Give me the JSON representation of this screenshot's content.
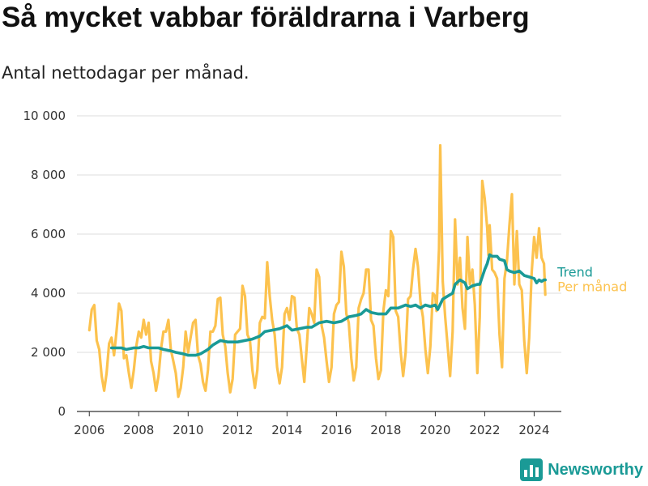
{
  "header": {
    "title": "Så mycket vabbar föräldrarna i Varberg",
    "subtitle": "Antal nettodagar per månad."
  },
  "brand": {
    "name": "Newsworthy",
    "icon": "bar-chart-logo-icon"
  },
  "colors": {
    "per_month": "#fcc24e",
    "trend": "#1a9a96",
    "grid": "#dddddd",
    "axis": "#333333"
  },
  "chart_data": {
    "type": "line",
    "xlim": [
      2005.5,
      2025.1
    ],
    "ylim": [
      0,
      10000
    ],
    "grid": "horizontal",
    "x_ticks": [
      2006,
      2008,
      2010,
      2012,
      2014,
      2016,
      2018,
      2020,
      2022,
      2024
    ],
    "x_tick_labels": [
      "2006",
      "2008",
      "2010",
      "2012",
      "2014",
      "2016",
      "2018",
      "2020",
      "2022",
      "2024"
    ],
    "y_ticks": [
      0,
      2000,
      4000,
      6000,
      8000,
      10000
    ],
    "y_tick_labels": [
      "0",
      "2 000",
      "4 000",
      "6 000",
      "8 000",
      "10 000"
    ],
    "series": [
      {
        "name": "Per månad",
        "values": [
          [
            2006.0,
            2750
          ],
          [
            2006.1,
            3450
          ],
          [
            2006.2,
            3600
          ],
          [
            2006.3,
            2400
          ],
          [
            2006.4,
            2100
          ],
          [
            2006.5,
            1200
          ],
          [
            2006.6,
            700
          ],
          [
            2006.7,
            1300
          ],
          [
            2006.8,
            2300
          ],
          [
            2006.9,
            2500
          ],
          [
            2007.0,
            1900
          ],
          [
            2007.1,
            2700
          ],
          [
            2007.2,
            3650
          ],
          [
            2007.3,
            3400
          ],
          [
            2007.4,
            1800
          ],
          [
            2007.5,
            1900
          ],
          [
            2007.6,
            1300
          ],
          [
            2007.7,
            800
          ],
          [
            2007.8,
            1400
          ],
          [
            2007.9,
            2200
          ],
          [
            2008.0,
            2700
          ],
          [
            2008.1,
            2500
          ],
          [
            2008.2,
            3100
          ],
          [
            2008.3,
            2600
          ],
          [
            2008.4,
            3000
          ],
          [
            2008.5,
            1700
          ],
          [
            2008.6,
            1300
          ],
          [
            2008.7,
            700
          ],
          [
            2008.8,
            1200
          ],
          [
            2008.9,
            2100
          ],
          [
            2009.0,
            2700
          ],
          [
            2009.1,
            2700
          ],
          [
            2009.2,
            3100
          ],
          [
            2009.3,
            2100
          ],
          [
            2009.4,
            1700
          ],
          [
            2009.5,
            1300
          ],
          [
            2009.6,
            500
          ],
          [
            2009.7,
            800
          ],
          [
            2009.8,
            1500
          ],
          [
            2009.9,
            2700
          ],
          [
            2010.0,
            2000
          ],
          [
            2010.1,
            2500
          ],
          [
            2010.2,
            3000
          ],
          [
            2010.3,
            3100
          ],
          [
            2010.4,
            1900
          ],
          [
            2010.5,
            1600
          ],
          [
            2010.6,
            1000
          ],
          [
            2010.7,
            700
          ],
          [
            2010.8,
            1400
          ],
          [
            2010.9,
            2700
          ],
          [
            2011.0,
            2700
          ],
          [
            2011.1,
            2900
          ],
          [
            2011.2,
            3800
          ],
          [
            2011.3,
            3850
          ],
          [
            2011.4,
            2600
          ],
          [
            2011.5,
            2200
          ],
          [
            2011.6,
            1300
          ],
          [
            2011.7,
            650
          ],
          [
            2011.8,
            1100
          ],
          [
            2011.9,
            2600
          ],
          [
            2012.0,
            2700
          ],
          [
            2012.1,
            2800
          ],
          [
            2012.2,
            4250
          ],
          [
            2012.3,
            3900
          ],
          [
            2012.4,
            2600
          ],
          [
            2012.5,
            2400
          ],
          [
            2012.6,
            1400
          ],
          [
            2012.7,
            800
          ],
          [
            2012.8,
            1400
          ],
          [
            2012.9,
            3000
          ],
          [
            2013.0,
            3200
          ],
          [
            2013.1,
            3150
          ],
          [
            2013.2,
            5050
          ],
          [
            2013.3,
            3900
          ],
          [
            2013.4,
            3100
          ],
          [
            2013.5,
            2600
          ],
          [
            2013.6,
            1500
          ],
          [
            2013.7,
            950
          ],
          [
            2013.8,
            1500
          ],
          [
            2013.9,
            3300
          ],
          [
            2014.0,
            3500
          ],
          [
            2014.1,
            3100
          ],
          [
            2014.2,
            3900
          ],
          [
            2014.3,
            3850
          ],
          [
            2014.4,
            2800
          ],
          [
            2014.5,
            2600
          ],
          [
            2014.6,
            1800
          ],
          [
            2014.7,
            1000
          ],
          [
            2014.8,
            2200
          ],
          [
            2014.9,
            3500
          ],
          [
            2015.0,
            3300
          ],
          [
            2015.1,
            3000
          ],
          [
            2015.2,
            4800
          ],
          [
            2015.3,
            4550
          ],
          [
            2015.4,
            2900
          ],
          [
            2015.5,
            2500
          ],
          [
            2015.6,
            1700
          ],
          [
            2015.7,
            1000
          ],
          [
            2015.8,
            1500
          ],
          [
            2015.9,
            3300
          ],
          [
            2016.0,
            3600
          ],
          [
            2016.1,
            3700
          ],
          [
            2016.2,
            5400
          ],
          [
            2016.3,
            4900
          ],
          [
            2016.4,
            3300
          ],
          [
            2016.5,
            3000
          ],
          [
            2016.6,
            1800
          ],
          [
            2016.7,
            1050
          ],
          [
            2016.8,
            1500
          ],
          [
            2016.9,
            3500
          ],
          [
            2017.0,
            3800
          ],
          [
            2017.1,
            4000
          ],
          [
            2017.2,
            4800
          ],
          [
            2017.3,
            4800
          ],
          [
            2017.4,
            3100
          ],
          [
            2017.5,
            2900
          ],
          [
            2017.6,
            1800
          ],
          [
            2017.7,
            1100
          ],
          [
            2017.8,
            1400
          ],
          [
            2017.9,
            3400
          ],
          [
            2018.0,
            4100
          ],
          [
            2018.1,
            3900
          ],
          [
            2018.2,
            6100
          ],
          [
            2018.3,
            5900
          ],
          [
            2018.4,
            3400
          ],
          [
            2018.5,
            3200
          ],
          [
            2018.6,
            2000
          ],
          [
            2018.7,
            1200
          ],
          [
            2018.8,
            2000
          ],
          [
            2018.9,
            3800
          ],
          [
            2019.0,
            3900
          ],
          [
            2019.1,
            4800
          ],
          [
            2019.2,
            5500
          ],
          [
            2019.3,
            4900
          ],
          [
            2019.4,
            3700
          ],
          [
            2019.5,
            3200
          ],
          [
            2019.6,
            2100
          ],
          [
            2019.7,
            1300
          ],
          [
            2019.8,
            2200
          ],
          [
            2019.9,
            4000
          ],
          [
            2020.0,
            3900
          ],
          [
            2020.05,
            3400
          ],
          [
            2020.15,
            5500
          ],
          [
            2020.2,
            9000
          ],
          [
            2020.3,
            4400
          ],
          [
            2020.4,
            3200
          ],
          [
            2020.5,
            2200
          ],
          [
            2020.6,
            1200
          ],
          [
            2020.7,
            2700
          ],
          [
            2020.8,
            6500
          ],
          [
            2020.9,
            4300
          ],
          [
            2021.0,
            5200
          ],
          [
            2021.1,
            3500
          ],
          [
            2021.2,
            2800
          ],
          [
            2021.3,
            5900
          ],
          [
            2021.4,
            4300
          ],
          [
            2021.5,
            4800
          ],
          [
            2021.6,
            3600
          ],
          [
            2021.7,
            1300
          ],
          [
            2021.8,
            3200
          ],
          [
            2021.9,
            7800
          ],
          [
            2022.0,
            7200
          ],
          [
            2022.1,
            6200
          ],
          [
            2022.15,
            5300
          ],
          [
            2022.2,
            6300
          ],
          [
            2022.3,
            4800
          ],
          [
            2022.4,
            4700
          ],
          [
            2022.5,
            4500
          ],
          [
            2022.6,
            2600
          ],
          [
            2022.7,
            1500
          ],
          [
            2022.8,
            4500
          ],
          [
            2022.9,
            5100
          ],
          [
            2023.0,
            6300
          ],
          [
            2023.1,
            7350
          ],
          [
            2023.2,
            4300
          ],
          [
            2023.3,
            6100
          ],
          [
            2023.4,
            4300
          ],
          [
            2023.5,
            4100
          ],
          [
            2023.6,
            2400
          ],
          [
            2023.7,
            1300
          ],
          [
            2023.8,
            2500
          ],
          [
            2023.9,
            4700
          ],
          [
            2024.0,
            5900
          ],
          [
            2024.1,
            5200
          ],
          [
            2024.2,
            6200
          ],
          [
            2024.3,
            5200
          ],
          [
            2024.4,
            5000
          ],
          [
            2024.45,
            3950
          ]
        ]
      },
      {
        "name": "Trend",
        "values": [
          [
            2006.9,
            2150
          ],
          [
            2007.3,
            2150
          ],
          [
            2007.5,
            2100
          ],
          [
            2007.8,
            2150
          ],
          [
            2008.0,
            2150
          ],
          [
            2008.2,
            2200
          ],
          [
            2008.4,
            2150
          ],
          [
            2008.6,
            2150
          ],
          [
            2008.8,
            2150
          ],
          [
            2009.0,
            2100
          ],
          [
            2009.3,
            2050
          ],
          [
            2009.5,
            2000
          ],
          [
            2009.8,
            1950
          ],
          [
            2010.0,
            1900
          ],
          [
            2010.3,
            1900
          ],
          [
            2010.5,
            1950
          ],
          [
            2010.8,
            2100
          ],
          [
            2011.0,
            2250
          ],
          [
            2011.3,
            2400
          ],
          [
            2011.6,
            2350
          ],
          [
            2012.0,
            2350
          ],
          [
            2012.3,
            2400
          ],
          [
            2012.6,
            2450
          ],
          [
            2012.9,
            2550
          ],
          [
            2013.1,
            2700
          ],
          [
            2013.4,
            2750
          ],
          [
            2013.7,
            2800
          ],
          [
            2014.0,
            2900
          ],
          [
            2014.2,
            2750
          ],
          [
            2014.5,
            2800
          ],
          [
            2014.8,
            2850
          ],
          [
            2015.0,
            2850
          ],
          [
            2015.3,
            3000
          ],
          [
            2015.6,
            3050
          ],
          [
            2015.9,
            3000
          ],
          [
            2016.2,
            3050
          ],
          [
            2016.5,
            3200
          ],
          [
            2016.8,
            3250
          ],
          [
            2017.0,
            3300
          ],
          [
            2017.2,
            3450
          ],
          [
            2017.4,
            3350
          ],
          [
            2017.7,
            3300
          ],
          [
            2018.0,
            3300
          ],
          [
            2018.2,
            3500
          ],
          [
            2018.5,
            3500
          ],
          [
            2018.8,
            3600
          ],
          [
            2019.0,
            3550
          ],
          [
            2019.2,
            3600
          ],
          [
            2019.4,
            3500
          ],
          [
            2019.6,
            3600
          ],
          [
            2019.8,
            3550
          ],
          [
            2020.0,
            3600
          ],
          [
            2020.1,
            3450
          ],
          [
            2020.3,
            3800
          ],
          [
            2020.5,
            3900
          ],
          [
            2020.7,
            4000
          ],
          [
            2020.8,
            4300
          ],
          [
            2021.0,
            4450
          ],
          [
            2021.2,
            4350
          ],
          [
            2021.3,
            4150
          ],
          [
            2021.5,
            4250
          ],
          [
            2021.7,
            4300
          ],
          [
            2021.8,
            4300
          ],
          [
            2022.0,
            4800
          ],
          [
            2022.1,
            5000
          ],
          [
            2022.2,
            5300
          ],
          [
            2022.3,
            5250
          ],
          [
            2022.5,
            5250
          ],
          [
            2022.6,
            5150
          ],
          [
            2022.8,
            5100
          ],
          [
            2022.9,
            4800
          ],
          [
            2023.0,
            4750
          ],
          [
            2023.2,
            4700
          ],
          [
            2023.4,
            4750
          ],
          [
            2023.6,
            4600
          ],
          [
            2023.8,
            4550
          ],
          [
            2024.0,
            4500
          ],
          [
            2024.1,
            4350
          ],
          [
            2024.2,
            4450
          ],
          [
            2024.3,
            4400
          ],
          [
            2024.4,
            4450
          ],
          [
            2024.45,
            4450
          ]
        ]
      }
    ]
  }
}
